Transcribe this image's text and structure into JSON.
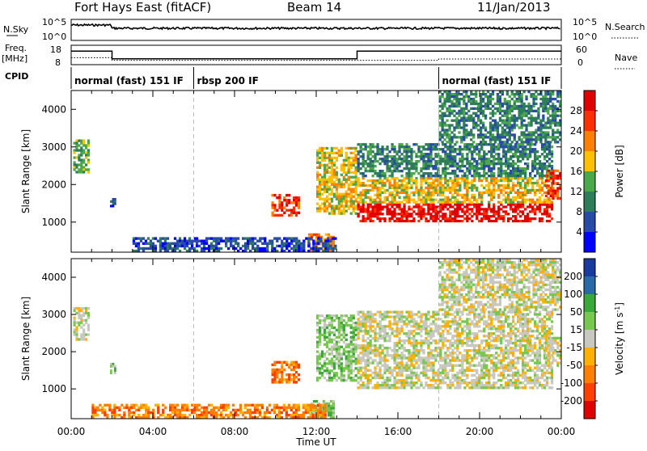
{
  "header": {
    "station": "Fort Hays East (fitACF)",
    "beam": "Beam 14",
    "date": "11/Jan/2013"
  },
  "strip": {
    "nsky_label": "N.Sky",
    "nsky_ticks": [
      "10^5",
      "10^0"
    ],
    "nsearch_label": "N.Search",
    "nsearch_ticks": [
      "10^5",
      "10^0"
    ],
    "freq_label": "Freq.",
    "freq_unit": "[MHz]",
    "freq_ticks": [
      "18",
      "8"
    ],
    "nave_label": "Nave",
    "nave_ticks": [
      "60",
      "0"
    ],
    "cpid_label": "CPID",
    "cpid_segments": [
      {
        "label": "normal (fast) 151 IF",
        "start_h": 0,
        "end_h": 6
      },
      {
        "label": "rbsp 200 IF",
        "start_h": 6,
        "end_h": 18
      },
      {
        "label": "normal (fast) 151 IF",
        "start_h": 18,
        "end_h": 24
      }
    ],
    "freq_levels": [
      {
        "start_h": 0,
        "end_h": 2,
        "mhz": 16
      },
      {
        "start_h": 2,
        "end_h": 14,
        "mhz": 10
      },
      {
        "start_h": 14,
        "end_h": 24,
        "mhz": 16
      }
    ],
    "nave_levels": [
      {
        "start_h": 0,
        "end_h": 2,
        "value": 20
      },
      {
        "start_h": 2,
        "end_h": 18,
        "value": 10
      },
      {
        "start_h": 18,
        "end_h": 24,
        "value": 15
      }
    ]
  },
  "chart_data": [
    {
      "type": "heatmap",
      "name": "power-panel",
      "ylabel": "Slant Range [km]",
      "yticks": [
        "4000",
        "3000",
        "2000",
        "1000"
      ],
      "ylim": [
        200,
        4500
      ],
      "xlim_hours": [
        0,
        24
      ],
      "colorbar_label": "Power [dB]",
      "colorbar_ticks": [
        "28",
        "24",
        "20",
        "16",
        "12",
        "8",
        "4"
      ],
      "colorbar_colors": [
        "#0000ff",
        "#2a4aa8",
        "#2e7d5a",
        "#4aa84a",
        "#ffc000",
        "#ff8000",
        "#ff3000",
        "#e00000"
      ],
      "regions": [
        {
          "h0": 0.1,
          "h1": 0.9,
          "r0": 2300,
          "r1": 3200,
          "level": 3
        },
        {
          "h0": 1.9,
          "h1": 2.2,
          "r0": 1400,
          "r1": 1700,
          "level": 1
        },
        {
          "h0": 9.8,
          "h1": 11.2,
          "r0": 1150,
          "r1": 1750,
          "level": 6
        },
        {
          "h0": 11.6,
          "h1": 12.9,
          "r0": 200,
          "r1": 700,
          "level": 5
        },
        {
          "h0": 12.0,
          "h1": 14.0,
          "r0": 1200,
          "r1": 3000,
          "level": 4
        },
        {
          "h0": 14.0,
          "h1": 23.6,
          "r0": 1000,
          "r1": 1500,
          "level": 7
        },
        {
          "h0": 14.0,
          "h1": 23.6,
          "r0": 1500,
          "r1": 2200,
          "level": 4
        },
        {
          "h0": 14.0,
          "h1": 23.6,
          "r0": 2200,
          "r1": 3100,
          "level": 2
        },
        {
          "h0": 18.0,
          "h1": 24.0,
          "r0": 3100,
          "r1": 4500,
          "level": 2
        },
        {
          "h0": 23.2,
          "h1": 24.0,
          "r0": 1600,
          "r1": 2400,
          "level": 6
        },
        {
          "h0": 3.0,
          "h1": 13.0,
          "r0": 200,
          "r1": 600,
          "level": 1
        }
      ]
    },
    {
      "type": "heatmap",
      "name": "velocity-panel",
      "ylabel": "Slant Range [km]",
      "yticks": [
        "4000",
        "3000",
        "2000",
        "1000"
      ],
      "ylim": [
        200,
        4500
      ],
      "xlim_hours": [
        0,
        24
      ],
      "colorbar_label": "Velocity [m s",
      "colorbar_unit_sup": "-1",
      "colorbar_ticks": [
        "200",
        "100",
        "50",
        "15",
        "-15",
        "-50",
        "-100",
        "-200"
      ],
      "colorbar_colors": [
        "#e00000",
        "#ff4000",
        "#ff8000",
        "#ffb000",
        "#c8c8c0",
        "#78c850",
        "#3aa83a",
        "#2a6aa8",
        "#1a3aa0"
      ],
      "regions": [
        {
          "h0": 0.1,
          "h1": 0.9,
          "r0": 2300,
          "r1": 3200,
          "level": 4
        },
        {
          "h0": 1.9,
          "h1": 2.2,
          "r0": 1400,
          "r1": 1700,
          "level": 5
        },
        {
          "h0": 9.8,
          "h1": 11.2,
          "r0": 1150,
          "r1": 1750,
          "level": 2
        },
        {
          "h0": 11.6,
          "h1": 12.9,
          "r0": 200,
          "r1": 700,
          "level": 5
        },
        {
          "h0": 12.0,
          "h1": 14.0,
          "r0": 1200,
          "r1": 3000,
          "level": 5
        },
        {
          "h0": 14.0,
          "h1": 23.6,
          "r0": 1000,
          "r1": 2200,
          "level": 4
        },
        {
          "h0": 14.0,
          "h1": 23.6,
          "r0": 2200,
          "r1": 3100,
          "level": 4
        },
        {
          "h0": 18.0,
          "h1": 24.0,
          "r0": 3100,
          "r1": 4500,
          "level": 4
        },
        {
          "h0": 23.2,
          "h1": 24.0,
          "r0": 1600,
          "r1": 2400,
          "level": 4
        },
        {
          "h0": 1.0,
          "h1": 12.5,
          "r0": 200,
          "r1": 600,
          "level": 2
        }
      ]
    }
  ],
  "xaxis": {
    "ticks": [
      "00:00",
      "04:00",
      "08:00",
      "12:00",
      "16:00",
      "20:00",
      "00:00"
    ],
    "label": "Time UT"
  }
}
